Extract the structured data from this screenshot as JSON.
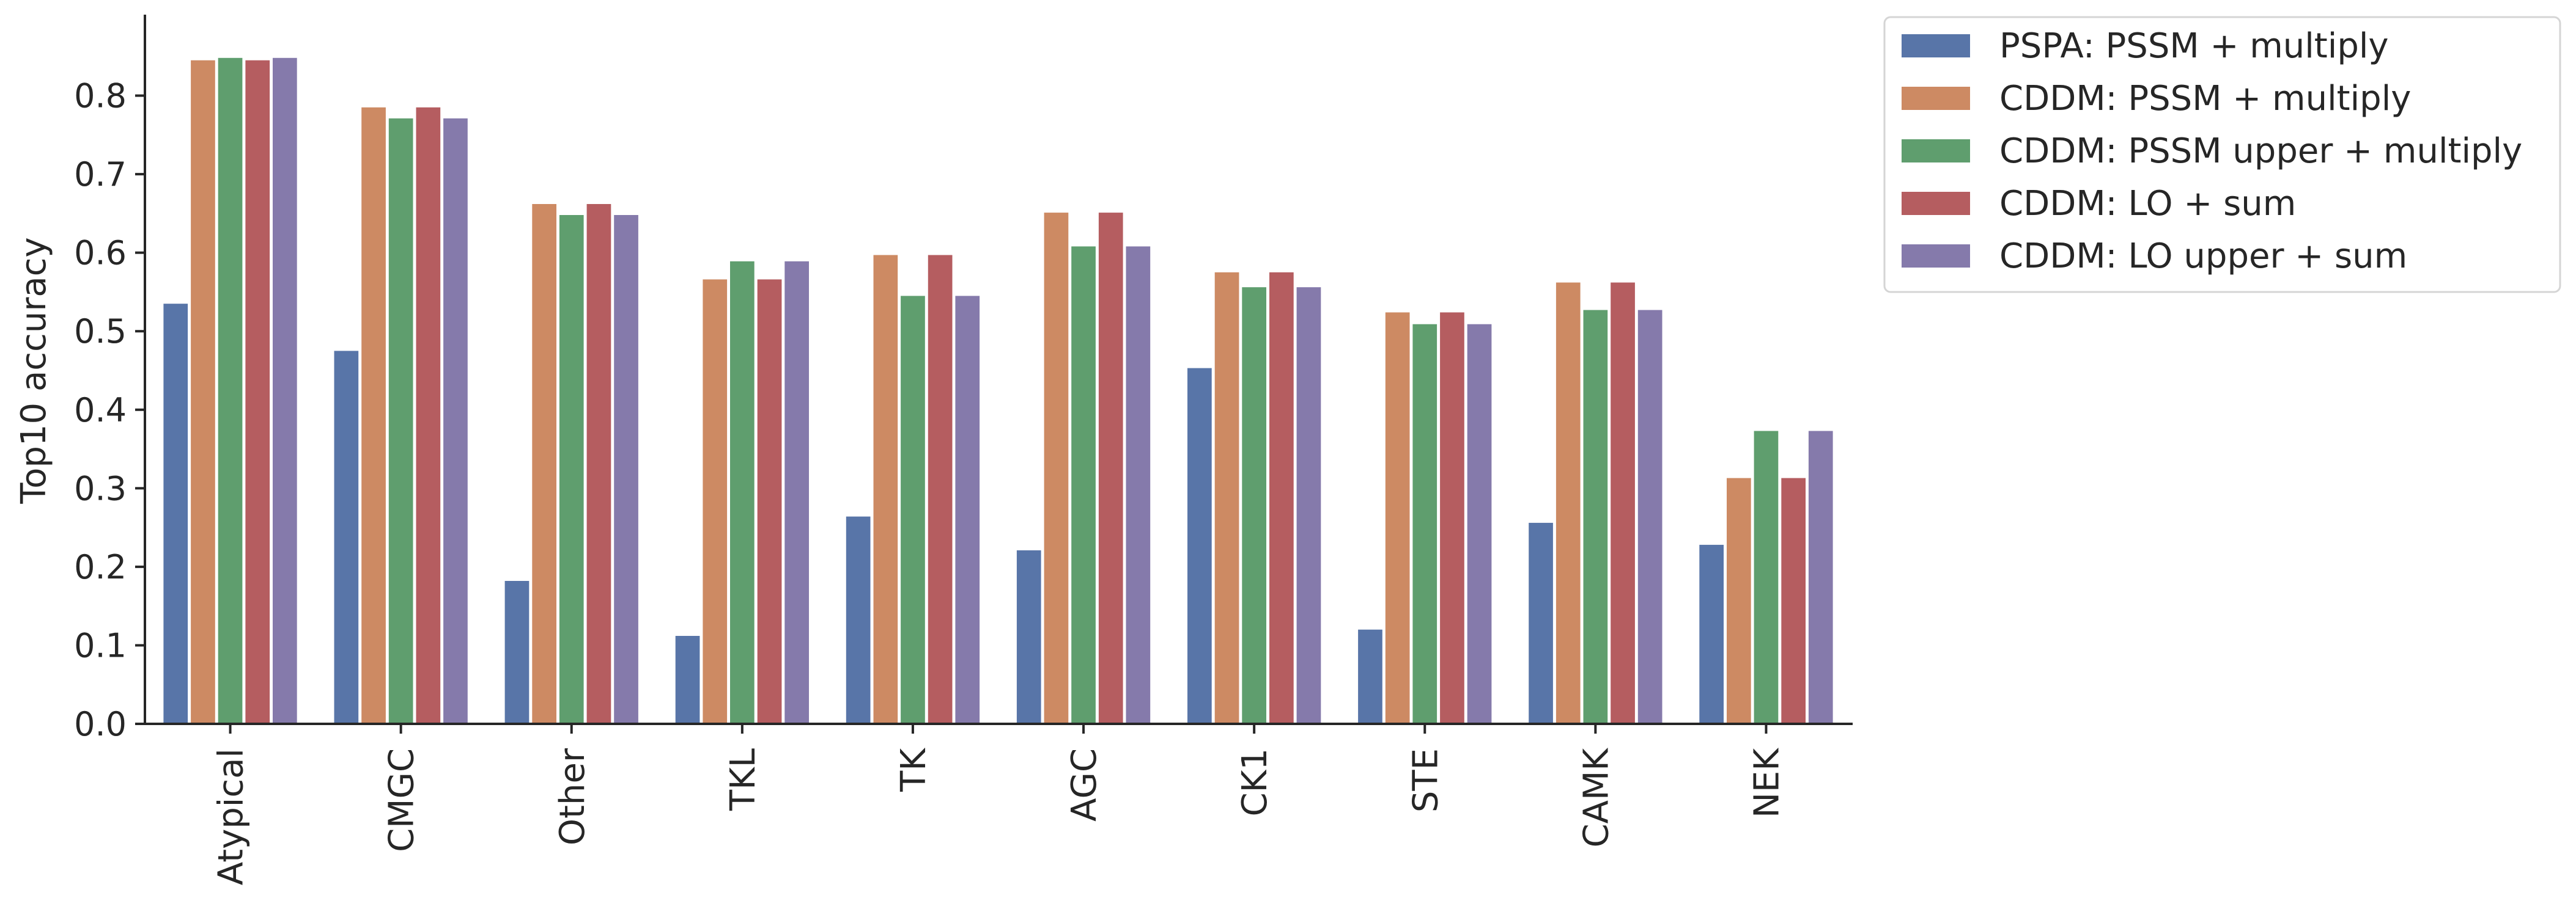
{
  "chart_data": {
    "type": "bar",
    "title": "",
    "xlabel": "",
    "ylabel": "Top10 accuracy",
    "ylim": [
      0,
      0.9
    ],
    "yticks": [
      0.0,
      0.1,
      0.2,
      0.3,
      0.4,
      0.5,
      0.6,
      0.7,
      0.8
    ],
    "ytick_labels": [
      "0.0",
      "0.1",
      "0.2",
      "0.3",
      "0.4",
      "0.5",
      "0.6",
      "0.7",
      "0.8"
    ],
    "grid": false,
    "legend_position": "outside-top-right",
    "categories": [
      "Atypical",
      "CMGC",
      "Other",
      "TKL",
      "TK",
      "AGC",
      "CK1",
      "STE",
      "CAMK",
      "NEK"
    ],
    "series": [
      {
        "name": "PSPA: PSSM + multiply",
        "color": "#5875a8",
        "values": [
          0.535,
          0.475,
          0.182,
          0.112,
          0.264,
          0.221,
          0.453,
          0.12,
          0.256,
          0.228
        ]
      },
      {
        "name": "CDDM: PSSM + multiply",
        "color": "#cd8a63",
        "values": [
          0.845,
          0.785,
          0.662,
          0.566,
          0.597,
          0.651,
          0.575,
          0.524,
          0.562,
          0.313
        ]
      },
      {
        "name": "CDDM: PSSM upper + multiply",
        "color": "#5f9e6e",
        "values": [
          0.848,
          0.771,
          0.648,
          0.589,
          0.545,
          0.608,
          0.556,
          0.509,
          0.527,
          0.373
        ]
      },
      {
        "name": "CDDM: LO + sum",
        "color": "#b55d60",
        "values": [
          0.845,
          0.785,
          0.662,
          0.566,
          0.597,
          0.651,
          0.575,
          0.524,
          0.562,
          0.313
        ]
      },
      {
        "name": "CDDM: LO upper + sum",
        "color": "#857aab",
        "values": [
          0.848,
          0.771,
          0.648,
          0.589,
          0.545,
          0.608,
          0.556,
          0.509,
          0.527,
          0.373
        ]
      }
    ]
  }
}
